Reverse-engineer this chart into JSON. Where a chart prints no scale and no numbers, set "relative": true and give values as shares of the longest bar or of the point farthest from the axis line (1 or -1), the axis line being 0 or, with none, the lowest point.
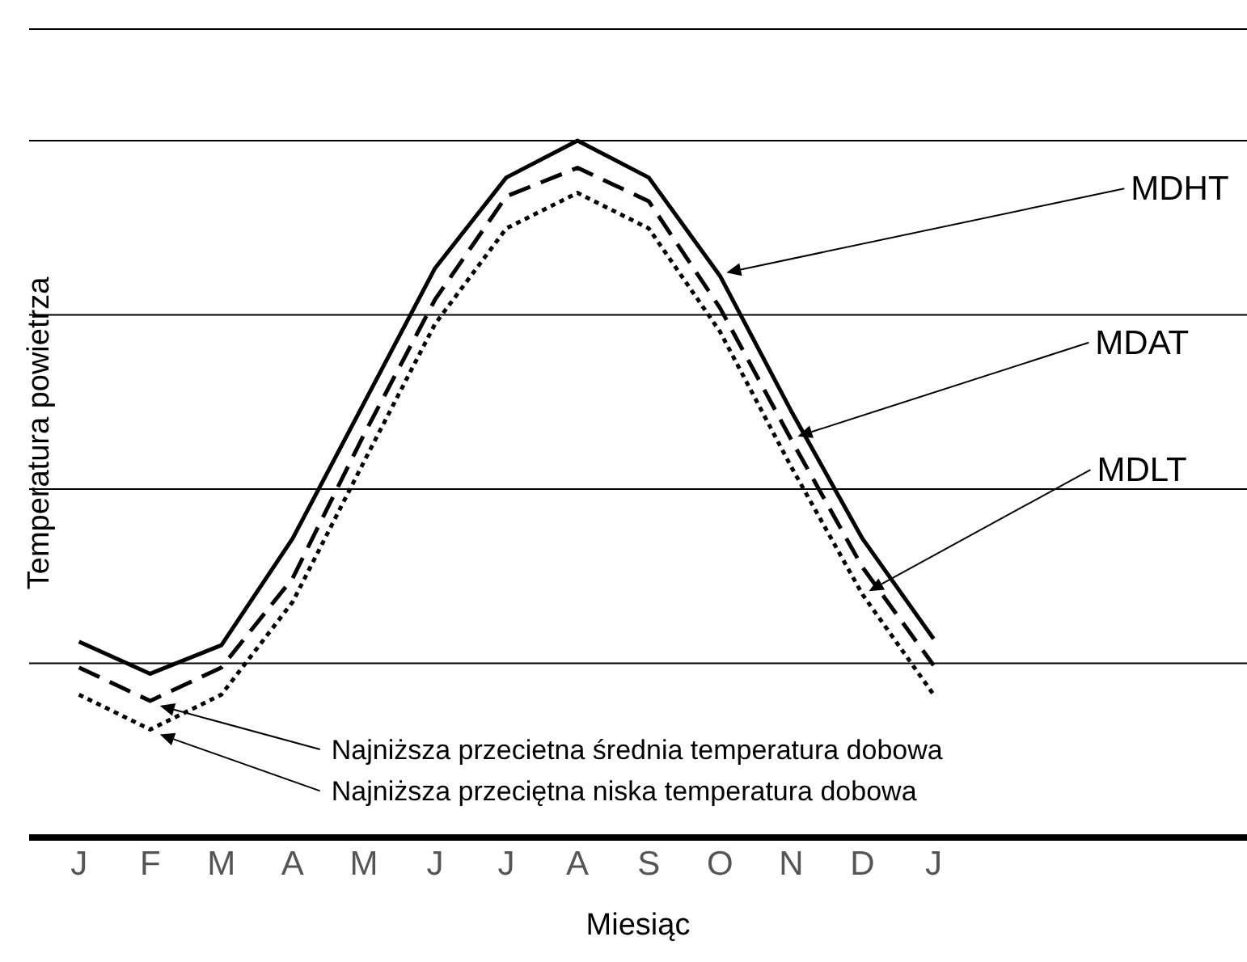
{
  "chart_data": {
    "type": "line",
    "relative": true,
    "xlabel": "Miesiąc",
    "ylabel": "Temperatura powietrza",
    "categories": [
      "J",
      "F",
      "M",
      "A",
      "M",
      "J",
      "J",
      "A",
      "S",
      "O",
      "N",
      "D",
      "J"
    ],
    "series": [
      {
        "name": "MDHT",
        "color": "#000000",
        "line_style": "solid",
        "values": [
          0.281,
          0.235,
          0.276,
          0.429,
          0.623,
          0.817,
          0.947,
          1,
          0.947,
          0.806,
          0.612,
          0.429,
          0.285
        ]
      },
      {
        "name": "MDAT",
        "color": "#000000",
        "line_style": "dashed",
        "values": [
          0.244,
          0.196,
          0.244,
          0.372,
          0.578,
          0.772,
          0.92,
          0.961,
          0.913,
          0.76,
          0.571,
          0.388,
          0.247
        ]
      },
      {
        "name": "MDLT",
        "color": "#000000",
        "line_style": "dotted",
        "values": [
          0.205,
          0.155,
          0.205,
          0.338,
          0.539,
          0.737,
          0.874,
          0.925,
          0.874,
          0.726,
          0.532,
          0.349,
          0.205
        ]
      }
    ],
    "annotations": [
      "Najniższa przecietna średnia temperatura dobowa",
      "Najniższa przeciętna niska temperatura dobowa"
    ],
    "grid": "y",
    "legend": false,
    "marker": "none"
  }
}
